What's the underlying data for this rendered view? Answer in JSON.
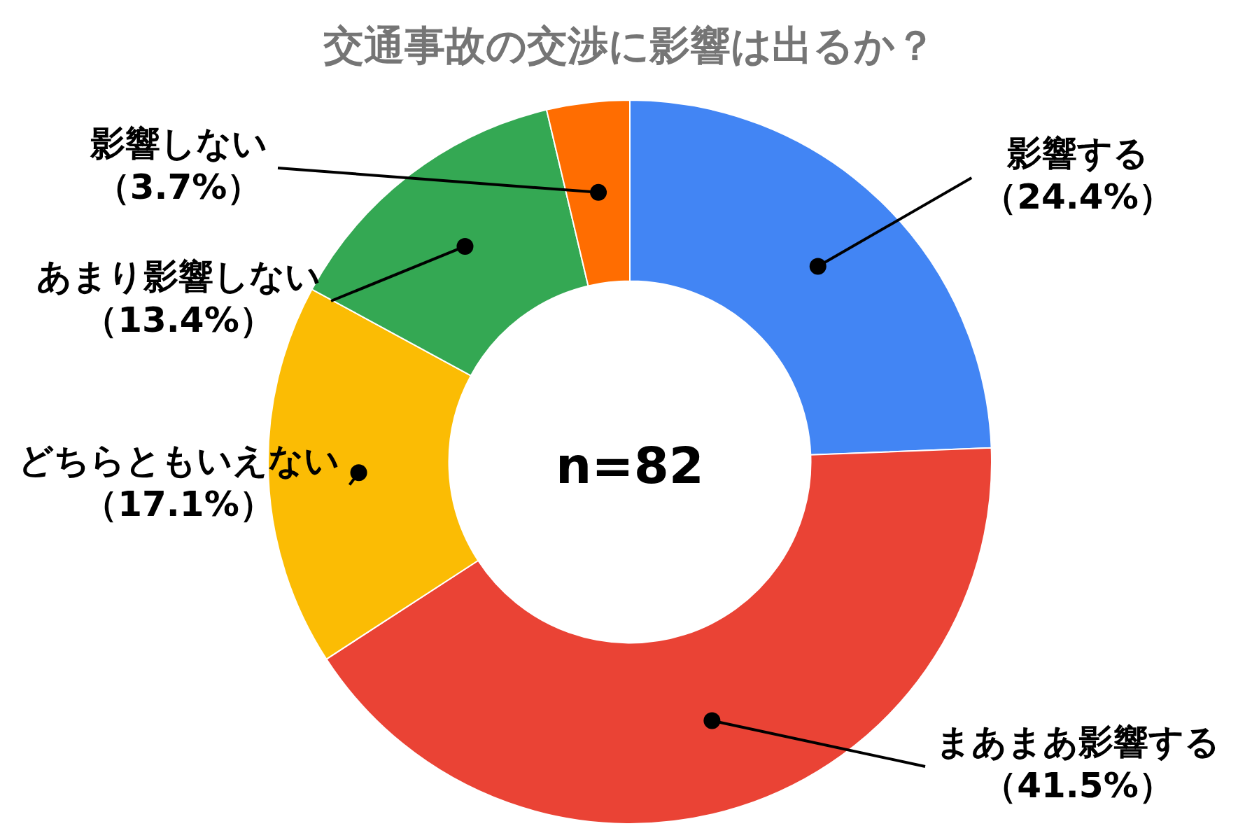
{
  "chart_data": {
    "type": "donut",
    "title": "交通事故の交渉に影響は出るか？",
    "categories": [
      "影響する",
      "まあまあ影響する",
      "どちらともいえない",
      "あまり影響しない",
      "影響しない"
    ],
    "values": [
      24.4,
      41.5,
      17.1,
      13.4,
      3.7
    ],
    "colors": [
      "#4285f4",
      "#ea4335",
      "#fbbc04",
      "#34a853",
      "#ff6d01"
    ],
    "value_labels": [
      "（24.4%）",
      "（41.5%）",
      "（17.1%）",
      "（13.4%）",
      "（3.7%）"
    ],
    "annotations": [
      "n=82"
    ]
  }
}
